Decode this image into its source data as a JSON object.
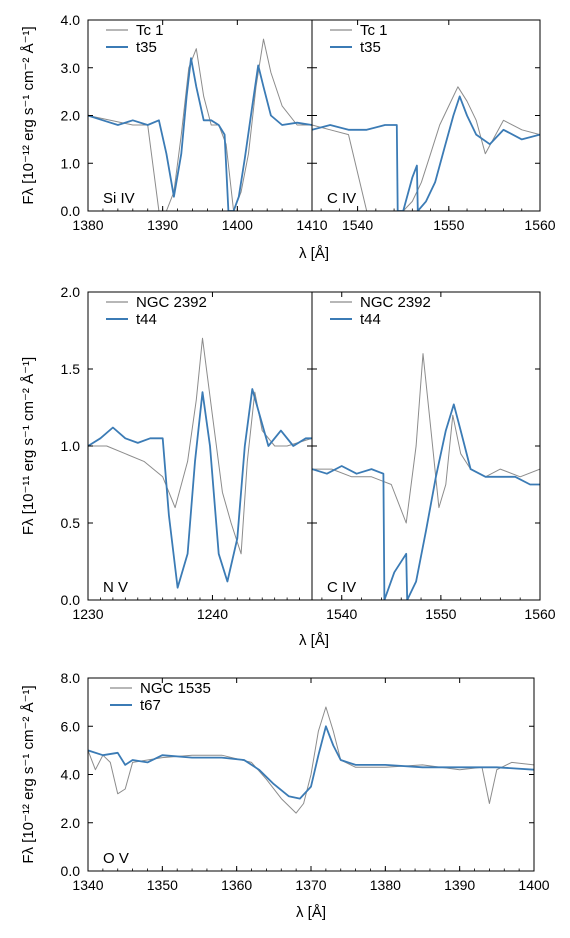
{
  "figure": {
    "panels": [
      {
        "ylabel": "Fλ [10⁻¹² erg s⁻¹ cm⁻² Å⁻¹]",
        "xlabel": "λ [Å]",
        "legend": {
          "observed": "Tc 1",
          "model": "t35"
        }
      },
      {
        "ylabel": "Fλ [10⁻¹¹ erg s⁻¹ cm⁻² Å⁻¹]",
        "xlabel": "λ [Å]",
        "legend": {
          "observed": "NGC 2392",
          "model": "t44"
        }
      },
      {
        "ylabel": "Fλ [10⁻¹² erg s⁻¹ cm⁻² Å⁻¹]",
        "xlabel": "λ [Å]",
        "legend": {
          "observed": "NGC 1535",
          "model": "t67"
        }
      }
    ]
  },
  "colors": {
    "observed": "#8c8c8c",
    "model": "#3b7bb5",
    "axis": "#000000"
  },
  "chart_data": [
    {
      "type": "line",
      "panel_label": "Si IV",
      "xlim": [
        1380,
        1410
      ],
      "ylim": [
        0,
        4
      ],
      "xticks": [
        "1380",
        "1390",
        "1400",
        "1410"
      ],
      "yticks": [
        "0.0",
        "1.0",
        "2.0",
        "3.0",
        "4.0"
      ],
      "legend": "top-right",
      "series": [
        {
          "name": "Tc 1",
          "x": [
            1380,
            1383,
            1386,
            1388,
            1389.5,
            1390.5,
            1391.5,
            1392.5,
            1393.5,
            1394.5,
            1395.5,
            1396.5,
            1397.5,
            1398.5,
            1399.5,
            1400.5,
            1401.5,
            1402.5,
            1403.5,
            1404.5,
            1406,
            1408,
            1410
          ],
          "y": [
            2.0,
            1.9,
            1.8,
            1.8,
            0.0,
            0.0,
            0.4,
            1.6,
            3.0,
            3.4,
            2.4,
            1.8,
            1.8,
            1.4,
            0.0,
            0.4,
            1.2,
            2.6,
            3.6,
            2.9,
            2.2,
            1.8,
            1.8
          ]
        },
        {
          "name": "t35",
          "x": [
            1380,
            1382,
            1384,
            1386,
            1388,
            1389.5,
            1390.5,
            1391.5,
            1392.5,
            1393.2,
            1393.8,
            1394.5,
            1395.5,
            1396.5,
            1397.5,
            1398.3,
            1398.8,
            1399.5,
            1400.2,
            1401,
            1402,
            1402.8,
            1403.5,
            1404.5,
            1406,
            1408,
            1410
          ],
          "y": [
            2.0,
            1.9,
            1.8,
            1.9,
            1.8,
            1.9,
            1.2,
            0.3,
            1.2,
            2.4,
            3.2,
            2.6,
            1.9,
            1.9,
            1.8,
            1.6,
            0.0,
            0.0,
            0.3,
            1.1,
            2.2,
            3.05,
            2.6,
            2.0,
            1.8,
            1.85,
            1.8
          ]
        }
      ]
    },
    {
      "type": "line",
      "panel_label": "C IV",
      "xlim": [
        1535,
        1560
      ],
      "ylim": [
        0,
        4
      ],
      "xticks": [
        "1540",
        "1550",
        "1560"
      ],
      "yticks": [],
      "legend": "top-right",
      "series": [
        {
          "name": "Tc 1",
          "x": [
            1535,
            1537,
            1539,
            1541,
            1543,
            1544,
            1545,
            1546,
            1547,
            1548,
            1549,
            1550,
            1551,
            1552,
            1553,
            1554,
            1556,
            1558,
            1560
          ],
          "y": [
            1.8,
            1.7,
            1.6,
            0.0,
            0.0,
            0.0,
            0.0,
            0.2,
            0.6,
            1.2,
            1.8,
            2.2,
            2.6,
            2.3,
            1.9,
            1.2,
            1.9,
            1.7,
            1.6
          ]
        },
        {
          "name": "t35",
          "x": [
            1535,
            1537,
            1539,
            1541,
            1543,
            1544.3,
            1544.4,
            1545,
            1546,
            1546.5,
            1546.6,
            1547.5,
            1548.5,
            1549.5,
            1550.5,
            1551.2,
            1552,
            1553,
            1554.5,
            1556,
            1558,
            1560
          ],
          "y": [
            1.7,
            1.8,
            1.7,
            1.7,
            1.8,
            1.8,
            0.0,
            0.0,
            0.7,
            0.95,
            0.0,
            0.2,
            0.6,
            1.3,
            2.0,
            2.4,
            2.0,
            1.6,
            1.4,
            1.7,
            1.5,
            1.6
          ]
        }
      ]
    },
    {
      "type": "line",
      "panel_label": "N V",
      "xlim": [
        1230,
        1248
      ],
      "ylim": [
        0,
        2
      ],
      "xticks": [
        "1230",
        "1240"
      ],
      "yticks": [
        "0.0",
        "0.5",
        "1.0",
        "1.5",
        "2.0"
      ],
      "legend": "top-right",
      "series": [
        {
          "name": "NGC 2392",
          "x": [
            1230,
            1231.5,
            1233,
            1234.5,
            1236,
            1237,
            1238,
            1238.7,
            1239.2,
            1240,
            1240.8,
            1241.5,
            1242.3,
            1242.8,
            1243.4,
            1244,
            1245,
            1246,
            1248
          ],
          "y": [
            1.0,
            1.0,
            0.95,
            0.9,
            0.8,
            0.6,
            0.9,
            1.3,
            1.7,
            1.2,
            0.7,
            0.5,
            0.3,
            0.9,
            1.35,
            1.1,
            1.0,
            1.0,
            1.05
          ]
        },
        {
          "name": "t44",
          "x": [
            1230,
            1231,
            1232,
            1233,
            1234,
            1235,
            1236,
            1236.5,
            1237.2,
            1238,
            1238.6,
            1239.2,
            1239.8,
            1240.5,
            1241.2,
            1242,
            1242.6,
            1243.2,
            1243.8,
            1244.5,
            1245.5,
            1246.5,
            1247.5,
            1248
          ],
          "y": [
            1.0,
            1.05,
            1.12,
            1.05,
            1.02,
            1.05,
            1.05,
            0.55,
            0.08,
            0.3,
            0.9,
            1.35,
            1.0,
            0.3,
            0.12,
            0.4,
            1.0,
            1.37,
            1.2,
            1.0,
            1.1,
            1.0,
            1.05,
            1.05
          ]
        }
      ]
    },
    {
      "type": "line",
      "panel_label": "C IV",
      "xlim": [
        1537,
        1560
      ],
      "ylim": [
        0,
        2
      ],
      "xticks": [
        "1540",
        "1550",
        "1560"
      ],
      "yticks": [],
      "legend": "top-right",
      "series": [
        {
          "name": "NGC 2392",
          "x": [
            1537,
            1539,
            1541,
            1543,
            1545,
            1546.5,
            1547.5,
            1548.2,
            1549,
            1549.8,
            1550.5,
            1551.2,
            1552,
            1553,
            1554.5,
            1556,
            1558,
            1560
          ],
          "y": [
            0.85,
            0.85,
            0.8,
            0.8,
            0.75,
            0.5,
            1.0,
            1.6,
            1.1,
            0.6,
            0.75,
            1.2,
            0.95,
            0.85,
            0.8,
            0.85,
            0.8,
            0.85
          ]
        },
        {
          "name": "t44",
          "x": [
            1537,
            1538.5,
            1540,
            1541.5,
            1543,
            1544.2,
            1544.3,
            1545.3,
            1546.5,
            1546.6,
            1547.5,
            1548.5,
            1549.5,
            1550.5,
            1551.3,
            1552,
            1553,
            1554.5,
            1556,
            1557.5,
            1559,
            1560
          ],
          "y": [
            0.85,
            0.82,
            0.87,
            0.82,
            0.85,
            0.82,
            0.0,
            0.18,
            0.3,
            0.0,
            0.12,
            0.45,
            0.8,
            1.1,
            1.27,
            1.1,
            0.85,
            0.8,
            0.8,
            0.8,
            0.75,
            0.75
          ]
        }
      ]
    },
    {
      "type": "line",
      "panel_label": "O V",
      "xlim": [
        1340,
        1400
      ],
      "ylim": [
        0,
        8
      ],
      "xticks": [
        "1340",
        "1350",
        "1360",
        "1370",
        "1380",
        "1390",
        "1400"
      ],
      "yticks": [
        "0.0",
        "2.0",
        "4.0",
        "6.0",
        "8.0"
      ],
      "legend": "top-left",
      "series": [
        {
          "name": "NGC 1535",
          "x": [
            1340,
            1341,
            1342,
            1343,
            1344,
            1345,
            1346,
            1348,
            1350,
            1354,
            1358,
            1362,
            1364,
            1366,
            1368,
            1369,
            1370,
            1371,
            1372,
            1373,
            1374,
            1376,
            1380,
            1385,
            1390,
            1393,
            1394,
            1395,
            1397,
            1400
          ],
          "y": [
            5.0,
            4.2,
            4.8,
            4.5,
            3.2,
            3.4,
            4.5,
            4.6,
            4.7,
            4.8,
            4.8,
            4.5,
            3.8,
            3.0,
            2.4,
            2.8,
            4.0,
            5.8,
            6.8,
            5.8,
            4.6,
            4.3,
            4.3,
            4.4,
            4.2,
            4.3,
            2.8,
            4.2,
            4.5,
            4.4
          ]
        },
        {
          "name": "t67",
          "x": [
            1340,
            1342,
            1344,
            1345,
            1346,
            1348,
            1350,
            1354,
            1358,
            1361,
            1363,
            1365,
            1367,
            1368.5,
            1370,
            1371,
            1372,
            1373,
            1374,
            1376,
            1380,
            1385,
            1390,
            1395,
            1400
          ],
          "y": [
            5.0,
            4.8,
            4.9,
            4.4,
            4.6,
            4.5,
            4.8,
            4.7,
            4.7,
            4.6,
            4.2,
            3.6,
            3.1,
            3.0,
            3.5,
            4.8,
            6.0,
            5.2,
            4.6,
            4.4,
            4.4,
            4.3,
            4.3,
            4.3,
            4.2
          ]
        }
      ]
    }
  ]
}
